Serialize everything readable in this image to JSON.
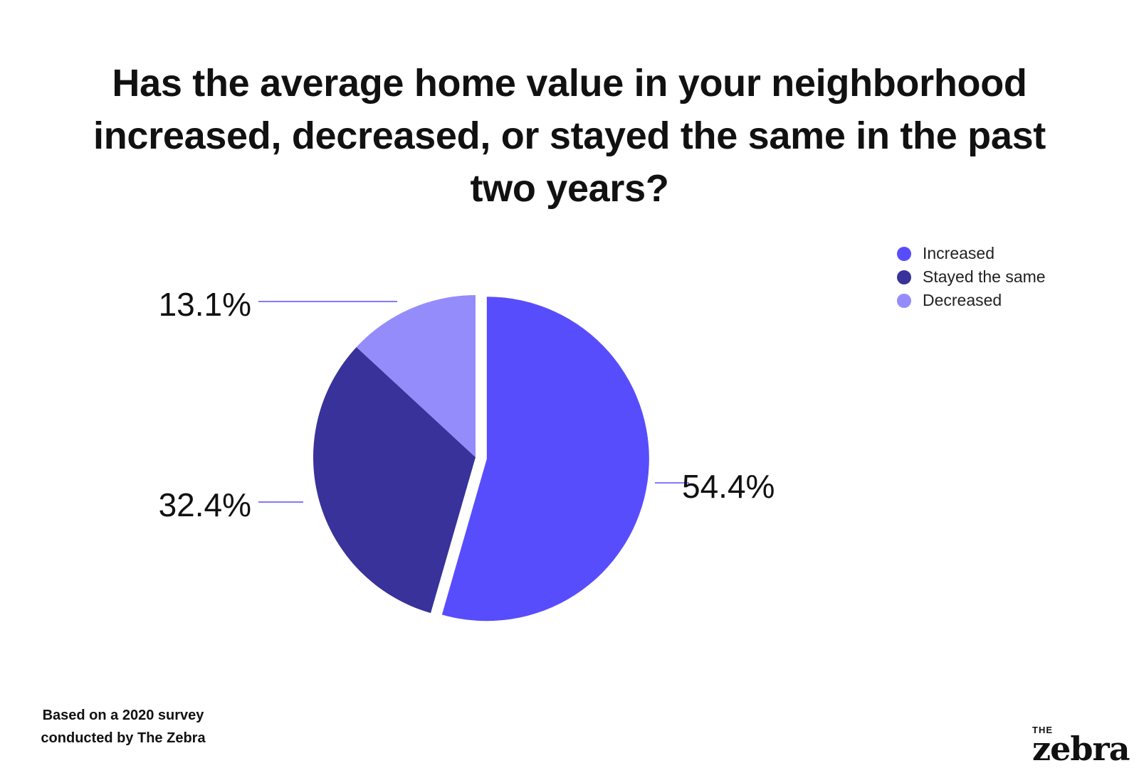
{
  "title": "Has the average home value in your neighborhood increased, decreased, or stayed the same in the past two years?",
  "footnote": {
    "line1": "Based on a 2020 survey",
    "line2": "conducted by The Zebra"
  },
  "logo": {
    "small": "THE",
    "word": "zebra"
  },
  "chart_data": {
    "type": "pie",
    "title": "Has the average home value in your neighborhood increased, decreased, or stayed the same in the past two years?",
    "categories": [
      "Increased",
      "Stayed the same",
      "Decreased"
    ],
    "values": [
      54.4,
      32.4,
      13.1
    ],
    "labels": [
      "54.4%",
      "32.4%",
      "13.1%"
    ],
    "colors": [
      "#584dfd",
      "#38329a",
      "#948cfb"
    ],
    "exploded": [
      "Increased"
    ],
    "legend_position": "top-right"
  }
}
